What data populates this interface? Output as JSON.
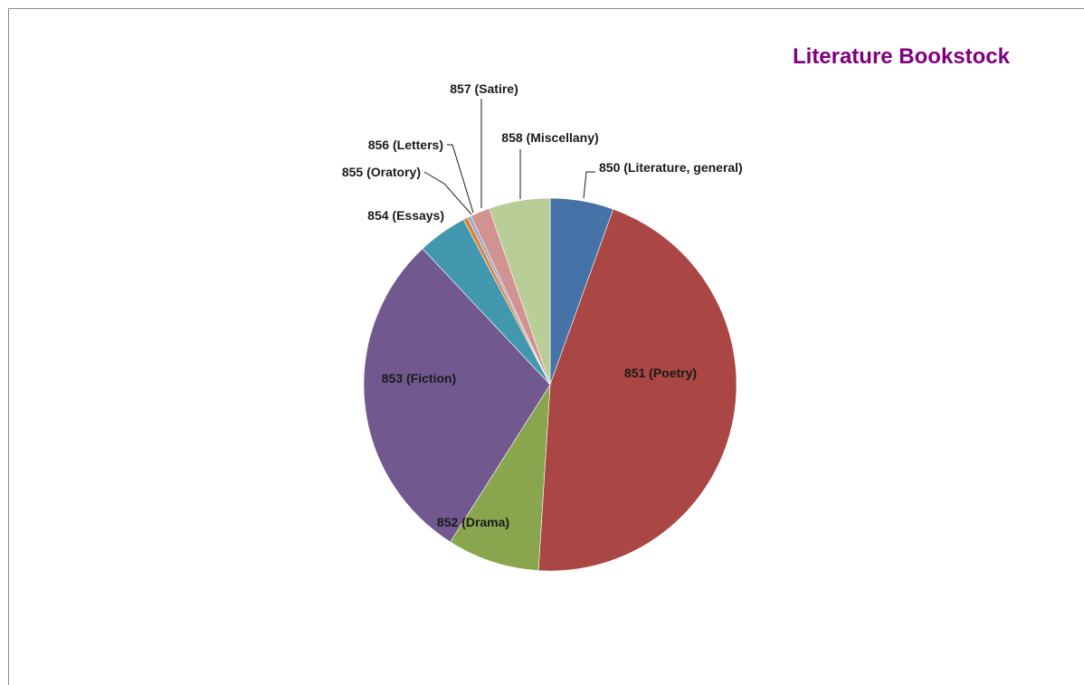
{
  "chart_data": {
    "type": "pie",
    "title": "Literature Bookstock",
    "title_color": "#800080",
    "start_angle_deg": 0,
    "direction": "clockwise",
    "legend": "none",
    "slices": [
      {
        "label": "850 (Literature, general)",
        "value": 5.5,
        "color": "#4572A7"
      },
      {
        "label": "851 (Poetry)",
        "value": 45.5,
        "color": "#AA4643"
      },
      {
        "label": "852 (Drama)",
        "value": 8.0,
        "color": "#89A54E"
      },
      {
        "label": "853 (Fiction)",
        "value": 29.0,
        "color": "#71588F"
      },
      {
        "label": "854 (Essays)",
        "value": 4.3,
        "color": "#4198AF"
      },
      {
        "label": "855 (Oratory)",
        "value": 0.4,
        "color": "#DB843D"
      },
      {
        "label": "856 (Letters)",
        "value": 0.3,
        "color": "#93A9CF"
      },
      {
        "label": "857 (Satire)",
        "value": 1.7,
        "color": "#D19392"
      },
      {
        "label": "858 (Miscellany)",
        "value": 5.3,
        "color": "#B9CD96"
      }
    ]
  }
}
